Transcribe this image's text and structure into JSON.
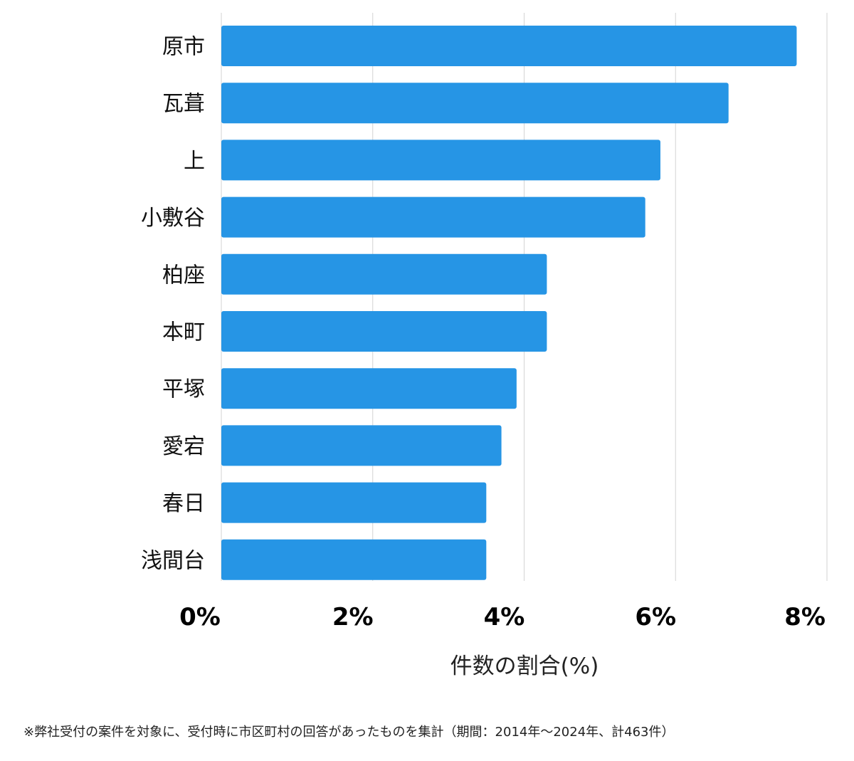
{
  "chart_data": {
    "type": "bar",
    "orientation": "horizontal",
    "categories": [
      "原市",
      "瓦葺",
      "上",
      "小敷谷",
      "柏座",
      "本町",
      "平塚",
      "愛宕",
      "春日",
      "浅間台"
    ],
    "values": [
      7.6,
      6.7,
      5.8,
      5.6,
      4.3,
      4.3,
      3.9,
      3.7,
      3.5,
      3.5
    ],
    "xlabel": "件数の割合(%)",
    "ylabel": "",
    "xlim": [
      0,
      8
    ],
    "xticks": [
      0,
      2,
      4,
      6,
      8
    ],
    "xtick_labels": [
      "0%",
      "2%",
      "4%",
      "6%",
      "8%"
    ],
    "grid": true,
    "bar_color": "#2695E5",
    "footnote": "※弊社受付の案件を対象に、受付時に市区町村の回答があったものを集計（期間：2014年～2024年、計463件）"
  }
}
